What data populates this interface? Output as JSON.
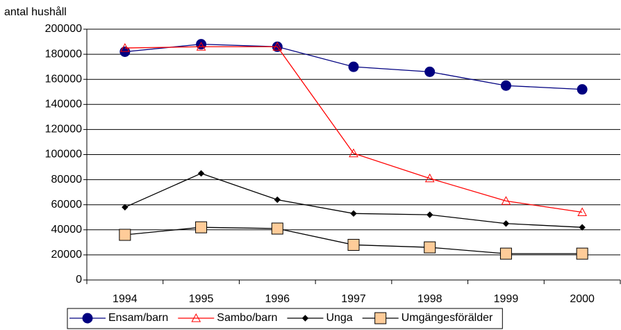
{
  "chart_data": {
    "type": "line",
    "ylabel": "antal hushåll",
    "categories": [
      "1994",
      "1995",
      "1996",
      "1997",
      "1998",
      "1999",
      "2000"
    ],
    "series": [
      {
        "name": "Ensam/barn",
        "color": "#000080",
        "marker": "circle",
        "marker_fill": "#000080",
        "values": [
          182000,
          188000,
          186000,
          170000,
          166000,
          155000,
          152000
        ]
      },
      {
        "name": "Sambo/barn",
        "color": "#ff0000",
        "marker": "triangle",
        "marker_fill": "none",
        "values": [
          185000,
          186000,
          186000,
          101000,
          81000,
          63000,
          54000
        ]
      },
      {
        "name": "Unga",
        "color": "#000000",
        "marker": "diamond",
        "marker_fill": "#000000",
        "values": [
          58000,
          85000,
          64000,
          53000,
          52000,
          45000,
          42000
        ]
      },
      {
        "name": "Umgängesförälder",
        "color": "#000000",
        "marker": "square",
        "marker_fill": "#ffcc99",
        "values": [
          36000,
          42000,
          41000,
          28000,
          26000,
          21000,
          21000
        ]
      }
    ],
    "ylim": [
      0,
      200000
    ],
    "yticks": [
      0,
      20000,
      40000,
      60000,
      80000,
      100000,
      120000,
      140000,
      160000,
      180000,
      200000
    ],
    "grid": true,
    "legend": "bottom"
  }
}
